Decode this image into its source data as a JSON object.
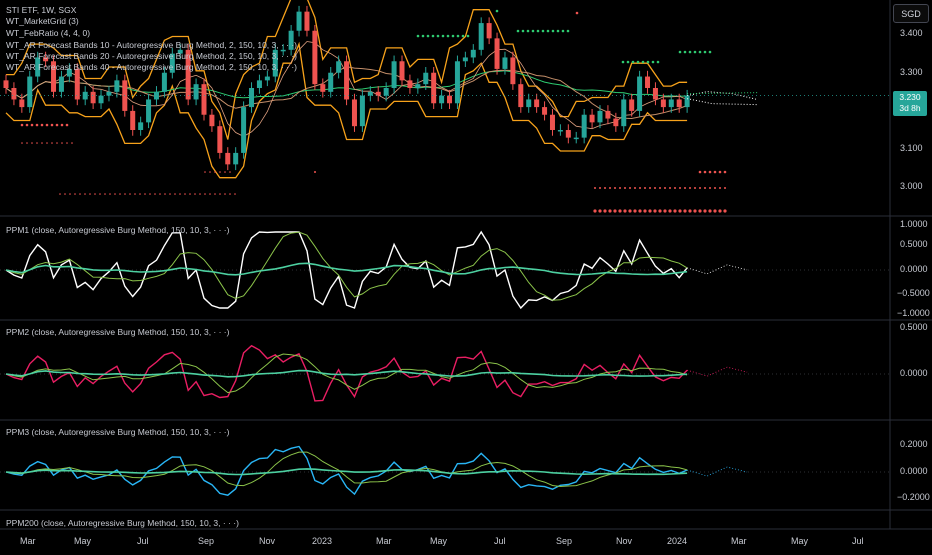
{
  "header": {
    "symbol_line": "STI ETF, 1W, SGX",
    "indicators": [
      "WT_MarketGrid (3)",
      "WT_FebRatio (4, 4, 0)",
      "WT_AR Forecast Bands 10 - Autoregressive Burg Method, 2, 150, 10, 3, · · ·)",
      "WT_AR Forecast Bands 20 - Autoregressive Burg Method, 2, 150, 10, 3, · · ·)",
      "WT_AR Forecast Bands 40 - Autoregressive Burg Method, 2, 150, 10, 3, · · ·)"
    ]
  },
  "toolbar": {
    "currency_button": "SGD"
  },
  "price_tag": {
    "value": "3.230",
    "countdown": "3d 8h",
    "color": "#26a69a"
  },
  "colors": {
    "up": "#26a69a",
    "down": "#ef5350",
    "band": "#f7a21b",
    "green": "#2ecc71",
    "ppm1": "#ffffff",
    "ppm2": "#e91e63",
    "ppm3": "#29b6f6",
    "teal_line": "#4dd0a1"
  },
  "panes": [
    {
      "title": "PPM1 (close, Autoregressive Burg Method, 150, 10, 3, · · ·)",
      "ticks": [
        "1.0000",
        "0.5000",
        "0.0000",
        "−0.5000",
        "−1.0000"
      ]
    },
    {
      "title": "PPM2 (close, Autoregressive Burg Method, 150, 10, 3, · · ·)",
      "ticks": [
        "0.5000",
        "0.0000"
      ]
    },
    {
      "title": "PPM3 (close, Autoregressive Burg Method, 150, 10, 3, · · ·)",
      "ticks": [
        "0.2000",
        "0.0000",
        "−0.2000"
      ]
    },
    {
      "title": "PPM200 (close, Autoregressive Burg Method, 150, 10, 3, · · ·)",
      "ticks": []
    }
  ],
  "chart_data": {
    "type": "candlestick",
    "interval": "1W",
    "price_axis": {
      "ticks": [
        "3.400",
        "3.300",
        "3.200",
        "3.100",
        "3.000"
      ],
      "ylim": [
        2.92,
        3.47
      ]
    },
    "x_axis_labels": [
      "Mar",
      "May",
      "Jul",
      "Sep",
      "Nov",
      "2023",
      "Mar",
      "May",
      "Jul",
      "Sep",
      "Nov",
      "2024",
      "Mar",
      "May",
      "Jul"
    ],
    "closes": [
      3.25,
      3.22,
      3.2,
      3.28,
      3.33,
      3.32,
      3.24,
      3.28,
      3.3,
      3.22,
      3.24,
      3.21,
      3.23,
      3.24,
      3.27,
      3.19,
      3.14,
      3.16,
      3.22,
      3.24,
      3.29,
      3.34,
      3.35,
      3.22,
      3.26,
      3.18,
      3.15,
      3.08,
      3.05,
      3.08,
      3.2,
      3.25,
      3.27,
      3.28,
      3.35,
      3.35,
      3.4,
      3.45,
      3.4,
      3.26,
      3.24,
      3.29,
      3.32,
      3.22,
      3.15,
      3.23,
      3.24,
      3.23,
      3.25,
      3.32,
      3.27,
      3.25,
      3.26,
      3.29,
      3.21,
      3.23,
      3.21,
      3.32,
      3.33,
      3.35,
      3.42,
      3.38,
      3.3,
      3.33,
      3.26,
      3.2,
      3.22,
      3.2,
      3.18,
      3.14,
      3.14,
      3.12,
      3.12,
      3.18,
      3.16,
      3.19,
      3.17,
      3.15,
      3.22,
      3.19,
      3.28,
      3.25,
      3.22,
      3.2,
      3.22,
      3.2,
      3.23
    ],
    "forecast_end": 3.22
  }
}
